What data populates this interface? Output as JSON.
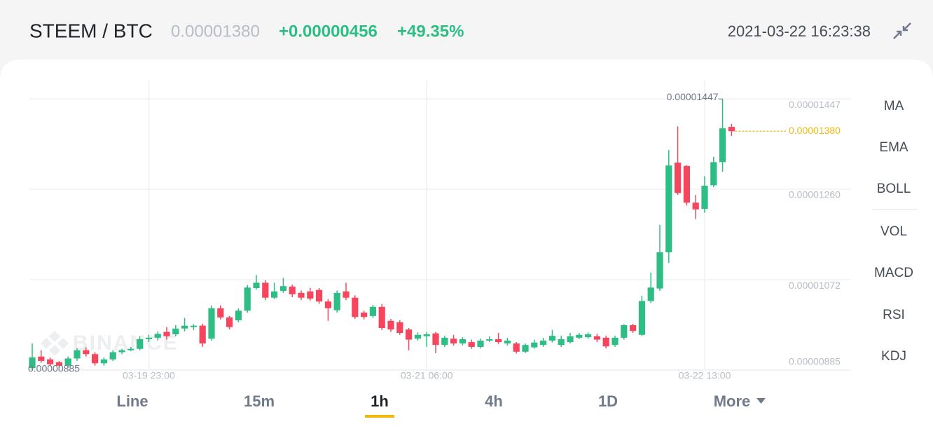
{
  "header": {
    "pair": "STEEM / BTC",
    "price": "0.00001380",
    "change": "+0.00000456",
    "change_percent": "+49.35%",
    "timestamp": "2021-03-22 16:23:38"
  },
  "chart_data": {
    "type": "candlestick",
    "watermark": "BINANCE",
    "categories": [
      null,
      null,
      null,
      null,
      null,
      null,
      null,
      null,
      null,
      null,
      null,
      null,
      null,
      "03-19 23:00",
      null,
      null,
      null,
      null,
      null,
      null,
      null,
      null,
      null,
      null,
      null,
      null,
      null,
      null,
      null,
      null,
      null,
      null,
      null,
      null,
      null,
      null,
      null,
      null,
      null,
      null,
      null,
      null,
      null,
      null,
      "03-21 06:00",
      null,
      null,
      null,
      null,
      null,
      null,
      null,
      null,
      null,
      null,
      null,
      null,
      null,
      null,
      null,
      null,
      null,
      null,
      null,
      null,
      null,
      null,
      null,
      null,
      null,
      null,
      null,
      null,
      null,
      null,
      "03-22 13:00",
      null,
      null,
      null
    ],
    "open": [
      8.89e-06,
      9.13e-06,
      9.07e-06,
      9.01e-06,
      8.94e-06,
      9.09e-06,
      9.26e-06,
      9.18e-06,
      8.99e-06,
      9.07e-06,
      9.22e-06,
      9.26e-06,
      9.29e-06,
      9.49e-06,
      9.52e-06,
      9.64e-06,
      9.59e-06,
      9.71e-06,
      9.74e-06,
      9.77e-06,
      9.5e-06,
      1.013e-05,
      9.94e-06,
      9.88e-06,
      1.008e-05,
      1.055e-05,
      1.066e-05,
      1.035e-05,
      1.049e-05,
      1.058e-05,
      1.045e-05,
      1.048e-05,
      1.051e-05,
      1.027e-05,
      1.009e-05,
      1.048e-05,
      1.035e-05,
      1.004e-05,
      9.97e-06,
      1.016e-05,
      9.87e-06,
      9.84e-06,
      9.69e-06,
      9.5e-06,
      9.55e-06,
      9.61e-06,
      9.37e-06,
      9.5e-06,
      9.4e-06,
      9.43e-06,
      9.33e-06,
      9.46e-06,
      9.49e-06,
      9.4e-06,
      9.4e-06,
      9.23e-06,
      9.32e-06,
      9.37e-06,
      9.46e-06,
      9.37e-06,
      9.43e-06,
      9.52e-06,
      9.53e-06,
      9.55e-06,
      9.52e-06,
      9.37e-06,
      9.52e-06,
      9.78e-06,
      9.58e-06,
      1.028e-05,
      1.054e-05,
      1.129e-05,
      1.315e-05,
      1.308e-05,
      1.232e-05,
      1.219e-05,
      1.268e-05,
      1.316e-05,
      1.389e-05
    ],
    "high": [
      9.4e-06,
      9.26e-06,
      9.11e-06,
      9.04e-06,
      9.13e-06,
      9.3e-06,
      9.32e-06,
      9.22e-06,
      9.11e-06,
      9.26e-06,
      9.29e-06,
      9.33e-06,
      9.55e-06,
      9.58e-06,
      9.65e-06,
      9.74e-06,
      9.78e-06,
      9.93e-06,
      9.8e-06,
      9.81e-06,
      1.019e-05,
      1.019e-05,
      9.97e-06,
      1.013e-05,
      1.061e-05,
      1.082e-05,
      1.071e-05,
      1.066e-05,
      1.076e-05,
      1.062e-05,
      1.05e-05,
      1.055e-05,
      1.055e-05,
      1.032e-05,
      1.05e-05,
      1.066e-05,
      1.04e-05,
      1.008e-05,
      1.02e-05,
      1.022e-05,
      9.91e-06,
      9.88e-06,
      9.72e-06,
      9.63e-06,
      9.64e-06,
      9.64e-06,
      9.56e-06,
      9.58e-06,
      9.53e-06,
      9.48e-06,
      9.5e-06,
      9.55e-06,
      9.62e-06,
      9.52e-06,
      9.43e-06,
      9.4e-06,
      9.48e-06,
      9.52e-06,
      9.68e-06,
      9.56e-06,
      9.62e-06,
      9.62e-06,
      9.63e-06,
      9.6e-06,
      9.56e-06,
      9.56e-06,
      9.8e-06,
      9.81e-06,
      1.039e-05,
      1.087e-05,
      1.186e-05,
      1.341e-05,
      1.39e-05,
      1.31e-05,
      1.248e-05,
      1.287e-05,
      1.327e-05,
      1.447e-05,
      1.395e-05
    ],
    "low": [
      8.85e-06,
      9e-06,
      8.93e-06,
      8.9e-06,
      8.9e-06,
      9.04e-06,
      9.13e-06,
      8.94e-06,
      8.94e-06,
      9.04e-06,
      9.18e-06,
      9.24e-06,
      9.26e-06,
      9.43e-06,
      9.46e-06,
      9.48e-06,
      9.55e-06,
      9.65e-06,
      9.68e-06,
      9.33e-06,
      9.46e-06,
      9.9e-06,
      9.69e-06,
      9.84e-06,
      1.004e-05,
      1.052e-05,
      1.03e-05,
      1.032e-05,
      1.045e-05,
      1.036e-05,
      1.03e-05,
      1.029e-05,
      1.022e-05,
      9.87e-06,
      1.004e-05,
      1.03e-05,
      9.91e-06,
      9.9e-06,
      9.93e-06,
      9.68e-06,
      9.64e-06,
      9.58e-06,
      9.26e-06,
      9.46e-06,
      9.33e-06,
      9.2e-06,
      9.33e-06,
      9.36e-06,
      9.36e-06,
      9.29e-06,
      9.3e-06,
      9.43e-06,
      9.39e-06,
      9.36e-06,
      9.19e-06,
      9.2e-06,
      9.29e-06,
      9.33e-06,
      9.42e-06,
      9.33e-06,
      9.4e-06,
      9.49e-06,
      9.5e-06,
      9.43e-06,
      9.3e-06,
      9.33e-06,
      9.48e-06,
      9.62e-06,
      9.55e-06,
      1.024e-05,
      1.049e-05,
      1.107e-05,
      1.248e-05,
      1.226e-05,
      1.198e-05,
      1.211e-05,
      1.264e-05,
      1.296e-05,
      1.37e-05
    ],
    "close": [
      9.11e-06,
      9.04e-06,
      8.97e-06,
      8.94e-06,
      9.09e-06,
      9.26e-06,
      9.18e-06,
      8.99e-06,
      9.07e-06,
      9.22e-06,
      9.26e-06,
      9.29e-06,
      9.49e-06,
      9.52e-06,
      9.6e-06,
      9.55e-06,
      9.71e-06,
      9.77e-06,
      9.77e-06,
      9.4e-06,
      1.013e-05,
      9.94e-06,
      9.74e-06,
      1.008e-05,
      1.056e-05,
      1.066e-05,
      1.035e-05,
      1.048e-05,
      1.059e-05,
      1.042e-05,
      1.035e-05,
      1.033e-05,
      1.027e-05,
      1.013e-05,
      1.045e-05,
      1.035e-05,
      9.95e-06,
      9.95e-06,
      1.016e-05,
      9.72e-06,
      9.69e-06,
      9.62e-06,
      9.48e-06,
      9.58e-06,
      9.59e-06,
      9.37e-06,
      9.52e-06,
      9.4e-06,
      9.49e-06,
      9.33e-06,
      9.46e-06,
      9.49e-06,
      9.43e-06,
      9.46e-06,
      9.23e-06,
      9.37e-06,
      9.42e-06,
      9.46e-06,
      9.56e-06,
      9.49e-06,
      9.55e-06,
      9.58e-06,
      9.59e-06,
      9.48e-06,
      9.34e-06,
      9.52e-06,
      9.78e-06,
      9.66e-06,
      1.028e-05,
      1.056e-05,
      1.129e-05,
      1.309e-05,
      1.252e-05,
      1.232e-05,
      1.218e-05,
      1.267e-05,
      1.316e-05,
      1.386e-05,
      1.38e-05
    ],
    "up_color": "#2ebd85",
    "down_color": "#f6465d",
    "ylim": [
      8.85e-06,
      1.485e-05
    ],
    "yticks": [
      8.85e-06,
      1.072e-05,
      {
        "value": 1.26e-05,
        "label": "0.00001260"
      },
      1.447e-05
    ],
    "grid": true,
    "high_label": "0.00001447",
    "low_label": "0.00000885",
    "last_price": {
      "value": 1.38e-05,
      "label": "0.00001380",
      "color": "#f0b90b"
    }
  },
  "indicators": [
    "MA",
    "EMA",
    "BOLL",
    "VOL",
    "MACD",
    "RSI",
    "KDJ"
  ],
  "timeframes": [
    "Line",
    "15m",
    "1h",
    "4h",
    "1D",
    "More"
  ],
  "selected_timeframe": 2
}
